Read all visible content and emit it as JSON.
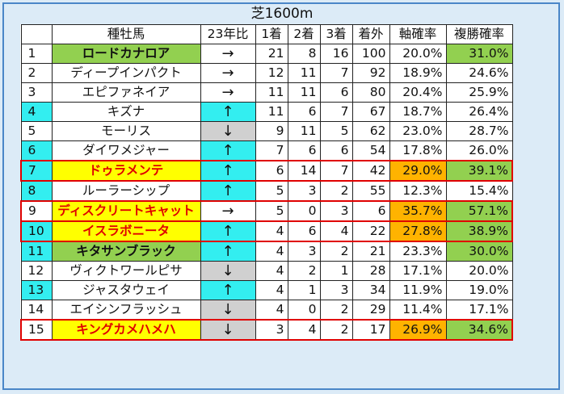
{
  "title": "芝1600m",
  "headers": [
    "",
    "種牡馬",
    "23年比",
    "1着",
    "2着",
    "3着",
    "着外",
    "軸確率",
    "複勝確率"
  ],
  "colors": {
    "rank_cyan": "#33eef0",
    "name_green": "#92d050",
    "name_yellow": "#ffff00",
    "trend_up": "#33eef0",
    "trend_down": "#d0d0d0",
    "jiku_orange": "#ffb300",
    "fuku_green": "#92d050",
    "highlight_border": "#e00000"
  },
  "rows": [
    {
      "rank": "1",
      "name": "ロードカナロア",
      "trend": "→",
      "w1": "21",
      "w2": "8",
      "w3": "16",
      "out": "100",
      "jiku": "20.0%",
      "fuku": "31.0%",
      "rank_bg": "",
      "name_bg": "green",
      "name_style": "bold",
      "trend_bg": "",
      "jiku_bg": "",
      "fuku_bg": "green",
      "highlight": false
    },
    {
      "rank": "2",
      "name": "ディープインパクト",
      "trend": "→",
      "w1": "12",
      "w2": "11",
      "w3": "7",
      "out": "92",
      "jiku": "18.9%",
      "fuku": "24.6%",
      "rank_bg": "",
      "name_bg": "",
      "name_style": "",
      "trend_bg": "",
      "jiku_bg": "",
      "fuku_bg": "",
      "highlight": false
    },
    {
      "rank": "3",
      "name": "エピファネイア",
      "trend": "→",
      "w1": "11",
      "w2": "11",
      "w3": "6",
      "out": "80",
      "jiku": "20.4%",
      "fuku": "25.9%",
      "rank_bg": "",
      "name_bg": "",
      "name_style": "",
      "trend_bg": "",
      "jiku_bg": "",
      "fuku_bg": "",
      "highlight": false
    },
    {
      "rank": "4",
      "name": "キズナ",
      "trend": "↑",
      "w1": "11",
      "w2": "6",
      "w3": "7",
      "out": "67",
      "jiku": "18.7%",
      "fuku": "26.4%",
      "rank_bg": "cyan",
      "name_bg": "",
      "name_style": "",
      "trend_bg": "up",
      "jiku_bg": "",
      "fuku_bg": "",
      "highlight": false
    },
    {
      "rank": "5",
      "name": "モーリス",
      "trend": "↓",
      "w1": "9",
      "w2": "11",
      "w3": "5",
      "out": "62",
      "jiku": "23.0%",
      "fuku": "28.7%",
      "rank_bg": "",
      "name_bg": "",
      "name_style": "",
      "trend_bg": "down",
      "jiku_bg": "",
      "fuku_bg": "",
      "highlight": false
    },
    {
      "rank": "6",
      "name": "ダイワメジャー",
      "trend": "↑",
      "w1": "7",
      "w2": "6",
      "w3": "6",
      "out": "54",
      "jiku": "17.8%",
      "fuku": "26.0%",
      "rank_bg": "cyan",
      "name_bg": "",
      "name_style": "",
      "trend_bg": "up",
      "jiku_bg": "",
      "fuku_bg": "",
      "highlight": false
    },
    {
      "rank": "7",
      "name": "ドゥラメンテ",
      "trend": "↑",
      "w1": "6",
      "w2": "14",
      "w3": "7",
      "out": "42",
      "jiku": "29.0%",
      "fuku": "39.1%",
      "rank_bg": "cyan",
      "name_bg": "yellow",
      "name_style": "red",
      "trend_bg": "up",
      "jiku_bg": "orange",
      "fuku_bg": "green",
      "highlight": true
    },
    {
      "rank": "8",
      "name": "ルーラーシップ",
      "trend": "↑",
      "w1": "5",
      "w2": "3",
      "w3": "2",
      "out": "55",
      "jiku": "12.3%",
      "fuku": "15.4%",
      "rank_bg": "cyan",
      "name_bg": "",
      "name_style": "",
      "trend_bg": "up",
      "jiku_bg": "",
      "fuku_bg": "",
      "highlight": false
    },
    {
      "rank": "9",
      "name": "ディスクリートキャット",
      "trend": "→",
      "w1": "5",
      "w2": "0",
      "w3": "3",
      "out": "6",
      "jiku": "35.7%",
      "fuku": "57.1%",
      "rank_bg": "",
      "name_bg": "yellow",
      "name_style": "red",
      "trend_bg": "",
      "jiku_bg": "orange",
      "fuku_bg": "green",
      "highlight": true
    },
    {
      "rank": "10",
      "name": "イスラボニータ",
      "trend": "↑",
      "w1": "4",
      "w2": "6",
      "w3": "4",
      "out": "22",
      "jiku": "27.8%",
      "fuku": "38.9%",
      "rank_bg": "cyan",
      "name_bg": "yellow",
      "name_style": "red",
      "trend_bg": "up",
      "jiku_bg": "orange",
      "fuku_bg": "green",
      "highlight": true
    },
    {
      "rank": "11",
      "name": "キタサンブラック",
      "trend": "↑",
      "w1": "4",
      "w2": "3",
      "w3": "2",
      "out": "21",
      "jiku": "23.3%",
      "fuku": "30.0%",
      "rank_bg": "cyan",
      "name_bg": "green",
      "name_style": "bold",
      "trend_bg": "up",
      "jiku_bg": "",
      "fuku_bg": "green",
      "highlight": false
    },
    {
      "rank": "12",
      "name": "ヴィクトワールピサ",
      "trend": "↓",
      "w1": "4",
      "w2": "2",
      "w3": "1",
      "out": "28",
      "jiku": "17.1%",
      "fuku": "20.0%",
      "rank_bg": "",
      "name_bg": "",
      "name_style": "",
      "trend_bg": "down",
      "jiku_bg": "",
      "fuku_bg": "",
      "highlight": false
    },
    {
      "rank": "13",
      "name": "ジャスタウェイ",
      "trend": "↑",
      "w1": "4",
      "w2": "1",
      "w3": "3",
      "out": "34",
      "jiku": "11.9%",
      "fuku": "19.0%",
      "rank_bg": "cyan",
      "name_bg": "",
      "name_style": "",
      "trend_bg": "up",
      "jiku_bg": "",
      "fuku_bg": "",
      "highlight": false
    },
    {
      "rank": "14",
      "name": "エイシンフラッシュ",
      "trend": "↓",
      "w1": "4",
      "w2": "0",
      "w3": "2",
      "out": "29",
      "jiku": "11.4%",
      "fuku": "17.1%",
      "rank_bg": "",
      "name_bg": "",
      "name_style": "",
      "trend_bg": "down",
      "jiku_bg": "",
      "fuku_bg": "",
      "highlight": false
    },
    {
      "rank": "15",
      "name": "キングカメハメハ",
      "trend": "↓",
      "w1": "3",
      "w2": "4",
      "w3": "2",
      "out": "17",
      "jiku": "26.9%",
      "fuku": "34.6%",
      "rank_bg": "",
      "name_bg": "yellow",
      "name_style": "red",
      "trend_bg": "down",
      "jiku_bg": "orange",
      "fuku_bg": "green",
      "highlight": true
    }
  ]
}
